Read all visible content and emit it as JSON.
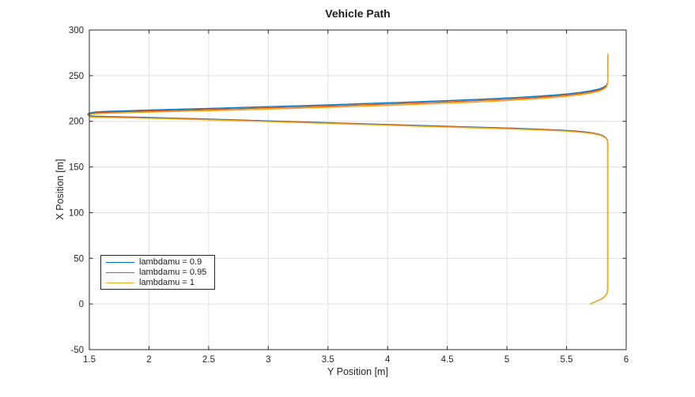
{
  "figure": {
    "title": "Vehicle Path"
  },
  "chart_data": {
    "type": "line",
    "title": "Vehicle Path",
    "xlabel": "Y Position [m]",
    "ylabel": "X Position [m]",
    "xlim": [
      1.5,
      6
    ],
    "ylim": [
      -50,
      300
    ],
    "grid": true,
    "box": true,
    "tick_dir": "in",
    "xticks": [
      1.5,
      2,
      2.5,
      3,
      3.5,
      4,
      4.5,
      5,
      5.5,
      6
    ],
    "xtick_labels": [
      "1.5",
      "2",
      "2.5",
      "3",
      "3.5",
      "4",
      "4.5",
      "5",
      "5.5",
      "6"
    ],
    "yticks": [
      -50,
      0,
      50,
      100,
      150,
      200,
      250,
      300
    ],
    "ytick_labels": [
      "-50",
      "0",
      "50",
      "100",
      "150",
      "200",
      "250",
      "300"
    ],
    "colors": {
      "axis": "#262626",
      "grid": "#e0e0e0",
      "text": "#262626",
      "title": "#1c1c1c"
    },
    "legend": {
      "position": "west",
      "entries": [
        {
          "label": "lambdamu = 0.9",
          "color": "#0072BD"
        },
        {
          "label": "lambdamu = 0.95",
          "color": "#D95319"
        },
        {
          "label": "lambdamu = 1",
          "color": "#EDB120"
        }
      ]
    },
    "series": [
      {
        "name": "lambdamu = 0.9",
        "color": "#0072BD",
        "points": [
          [
            5.7,
            0
          ],
          [
            5.725,
            1.5
          ],
          [
            5.76,
            3.5
          ],
          [
            5.8,
            6
          ],
          [
            5.826,
            9
          ],
          [
            5.84,
            12
          ],
          [
            5.845,
            16
          ],
          [
            5.845,
            176
          ],
          [
            5.842,
            179.4
          ],
          [
            5.835,
            181.1
          ],
          [
            5.822,
            182.8
          ],
          [
            5.802,
            184.4
          ],
          [
            5.772,
            185.8
          ],
          [
            5.728,
            187.1
          ],
          [
            5.668,
            188.2
          ],
          [
            5.578,
            189.3
          ],
          [
            5.458,
            190.3
          ],
          [
            5.298,
            191.2
          ],
          [
            5.098,
            192.2
          ],
          [
            4.878,
            193.1
          ],
          [
            4.638,
            194.0
          ],
          [
            4.398,
            194.9
          ],
          [
            4.148,
            195.9
          ],
          [
            3.898,
            196.9
          ],
          [
            3.648,
            197.9
          ],
          [
            3.398,
            198.9
          ],
          [
            3.148,
            199.9
          ],
          [
            2.898,
            200.9
          ],
          [
            2.648,
            201.9
          ],
          [
            2.398,
            202.8
          ],
          [
            2.168,
            203.6
          ],
          [
            1.968,
            204.3
          ],
          [
            1.798,
            204.8
          ],
          [
            1.658,
            205.2
          ],
          [
            1.558,
            205.5
          ],
          [
            1.503,
            206.0
          ],
          [
            1.491,
            206.8
          ],
          [
            1.487,
            207.7
          ],
          [
            1.495,
            208.6
          ],
          [
            1.517,
            209.5
          ],
          [
            1.553,
            210.2
          ],
          [
            1.65,
            210.9
          ],
          [
            1.8,
            211.5
          ],
          [
            2.0,
            212.3
          ],
          [
            2.25,
            213.2
          ],
          [
            2.5,
            214.1
          ],
          [
            2.75,
            215.0
          ],
          [
            3.0,
            216.0
          ],
          [
            3.25,
            217.0
          ],
          [
            3.5,
            218.0
          ],
          [
            3.75,
            219.1
          ],
          [
            4.0,
            220.2
          ],
          [
            4.25,
            221.4
          ],
          [
            4.5,
            222.6
          ],
          [
            4.72,
            223.8
          ],
          [
            4.92,
            225.0
          ],
          [
            5.1,
            226.2
          ],
          [
            5.26,
            227.5
          ],
          [
            5.4,
            228.8
          ],
          [
            5.52,
            230.2
          ],
          [
            5.62,
            231.7
          ],
          [
            5.7,
            233.3
          ],
          [
            5.77,
            235.2
          ],
          [
            5.81,
            237.2
          ],
          [
            5.835,
            239.5
          ],
          [
            5.845,
            242.5
          ],
          [
            5.846,
            249
          ],
          [
            5.846,
            271
          ]
        ]
      },
      {
        "name": "lambdamu = 0.95",
        "color": "#D95319",
        "points": [
          [
            5.7,
            0
          ],
          [
            5.725,
            1.5
          ],
          [
            5.76,
            3.5
          ],
          [
            5.8,
            6
          ],
          [
            5.826,
            9
          ],
          [
            5.84,
            12
          ],
          [
            5.845,
            16
          ],
          [
            5.845,
            176
          ],
          [
            5.842,
            179.0
          ],
          [
            5.836,
            180.7
          ],
          [
            5.823,
            182.4
          ],
          [
            5.803,
            184.0
          ],
          [
            5.773,
            185.4
          ],
          [
            5.729,
            186.7
          ],
          [
            5.669,
            187.8
          ],
          [
            5.579,
            188.9
          ],
          [
            5.459,
            189.9
          ],
          [
            5.299,
            190.8
          ],
          [
            5.099,
            191.8
          ],
          [
            4.879,
            192.7
          ],
          [
            4.639,
            193.6
          ],
          [
            4.399,
            194.5
          ],
          [
            4.149,
            195.5
          ],
          [
            3.899,
            196.5
          ],
          [
            3.649,
            197.5
          ],
          [
            3.399,
            198.5
          ],
          [
            3.149,
            199.5
          ],
          [
            2.899,
            200.5
          ],
          [
            2.649,
            201.5
          ],
          [
            2.399,
            202.4
          ],
          [
            2.169,
            203.2
          ],
          [
            1.969,
            203.8
          ],
          [
            1.799,
            204.3
          ],
          [
            1.659,
            204.7
          ],
          [
            1.559,
            204.9
          ],
          [
            1.505,
            205.4
          ],
          [
            1.494,
            206.2
          ],
          [
            1.49,
            207.0
          ],
          [
            1.499,
            207.9
          ],
          [
            1.521,
            208.7
          ],
          [
            1.559,
            209.3
          ],
          [
            1.655,
            209.9
          ],
          [
            1.8,
            210.4
          ],
          [
            2.0,
            211.1
          ],
          [
            2.25,
            212.0
          ],
          [
            2.5,
            212.8
          ],
          [
            2.75,
            213.7
          ],
          [
            3.0,
            214.7
          ],
          [
            3.25,
            215.6
          ],
          [
            3.5,
            216.6
          ],
          [
            3.75,
            217.7
          ],
          [
            4.0,
            218.8
          ],
          [
            4.25,
            220.0
          ],
          [
            4.5,
            221.2
          ],
          [
            4.72,
            222.4
          ],
          [
            4.92,
            223.6
          ],
          [
            5.1,
            224.8
          ],
          [
            5.26,
            226.1
          ],
          [
            5.4,
            227.5
          ],
          [
            5.52,
            228.9
          ],
          [
            5.62,
            230.4
          ],
          [
            5.7,
            232.0
          ],
          [
            5.77,
            234.0
          ],
          [
            5.81,
            236.1
          ],
          [
            5.835,
            238.5
          ],
          [
            5.845,
            241.8
          ],
          [
            5.8465,
            248.5
          ],
          [
            5.8465,
            272.5
          ]
        ]
      },
      {
        "name": "lambdamu = 1",
        "color": "#EDB120",
        "points": [
          [
            5.7,
            0
          ],
          [
            5.725,
            1.5
          ],
          [
            5.76,
            3.5
          ],
          [
            5.8,
            6
          ],
          [
            5.826,
            9
          ],
          [
            5.84,
            12
          ],
          [
            5.845,
            16
          ],
          [
            5.845,
            176
          ],
          [
            5.842,
            178.5
          ],
          [
            5.836,
            180.2
          ],
          [
            5.824,
            181.9
          ],
          [
            5.804,
            183.5
          ],
          [
            5.774,
            184.9
          ],
          [
            5.73,
            186.2
          ],
          [
            5.67,
            187.3
          ],
          [
            5.58,
            188.4
          ],
          [
            5.46,
            189.4
          ],
          [
            5.3,
            190.3
          ],
          [
            5.1,
            191.3
          ],
          [
            4.88,
            192.2
          ],
          [
            4.64,
            193.1
          ],
          [
            4.4,
            194.0
          ],
          [
            4.15,
            195.0
          ],
          [
            3.9,
            196.0
          ],
          [
            3.65,
            197.0
          ],
          [
            3.4,
            198.0
          ],
          [
            3.15,
            199.0
          ],
          [
            2.9,
            200.0
          ],
          [
            2.65,
            201.0
          ],
          [
            2.4,
            201.9
          ],
          [
            2.17,
            202.7
          ],
          [
            1.97,
            203.3
          ],
          [
            1.8,
            203.8
          ],
          [
            1.66,
            204.1
          ],
          [
            1.56,
            204.3
          ],
          [
            1.507,
            204.8
          ],
          [
            1.497,
            205.5
          ],
          [
            1.494,
            206.3
          ],
          [
            1.503,
            207.1
          ],
          [
            1.525,
            207.8
          ],
          [
            1.565,
            208.3
          ],
          [
            1.66,
            208.8
          ],
          [
            1.8,
            209.3
          ],
          [
            2.0,
            210.0
          ],
          [
            2.25,
            210.8
          ],
          [
            2.5,
            211.5
          ],
          [
            2.75,
            212.4
          ],
          [
            3.0,
            213.3
          ],
          [
            3.25,
            214.2
          ],
          [
            3.5,
            215.2
          ],
          [
            3.75,
            216.2
          ],
          [
            4.0,
            217.3
          ],
          [
            4.25,
            218.5
          ],
          [
            4.5,
            219.7
          ],
          [
            4.72,
            220.9
          ],
          [
            4.92,
            222.1
          ],
          [
            5.1,
            223.4
          ],
          [
            5.26,
            224.7
          ],
          [
            5.4,
            226.1
          ],
          [
            5.52,
            227.5
          ],
          [
            5.62,
            229.0
          ],
          [
            5.7,
            230.7
          ],
          [
            5.77,
            232.8
          ],
          [
            5.81,
            235.0
          ],
          [
            5.835,
            237.5
          ],
          [
            5.845,
            241
          ],
          [
            5.847,
            248
          ],
          [
            5.847,
            274
          ]
        ]
      }
    ]
  }
}
